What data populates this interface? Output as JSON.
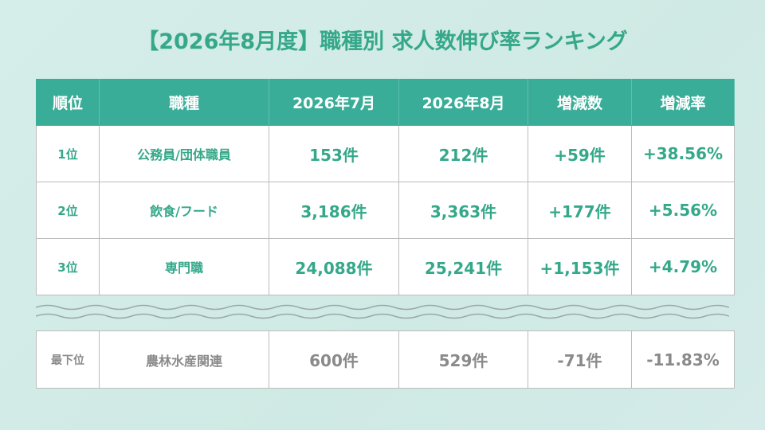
{
  "header": {
    "title": "【2026年8月度】職種別 求人数伸び率ランキング"
  },
  "table": {
    "columns": [
      "順位",
      "職種",
      "2026年7月",
      "2026年8月",
      "増減数",
      "増減率"
    ],
    "rows": [
      [
        "1位",
        "公務員/団体職員",
        "153件",
        "212件",
        "+59件",
        "+38.56%"
      ],
      [
        "2位",
        "飲食/フード",
        "3,186件",
        "3,363件",
        "+177件",
        "+5.56%"
      ],
      [
        "3位",
        "専門職",
        "24,088件",
        "25,241件",
        "+1,153件",
        "+4.79%"
      ]
    ]
  },
  "bottom": {
    "row": [
      "最下位",
      "農林水産関連",
      "600件",
      "529件",
      "-71件",
      "-11.83%"
    ]
  }
}
